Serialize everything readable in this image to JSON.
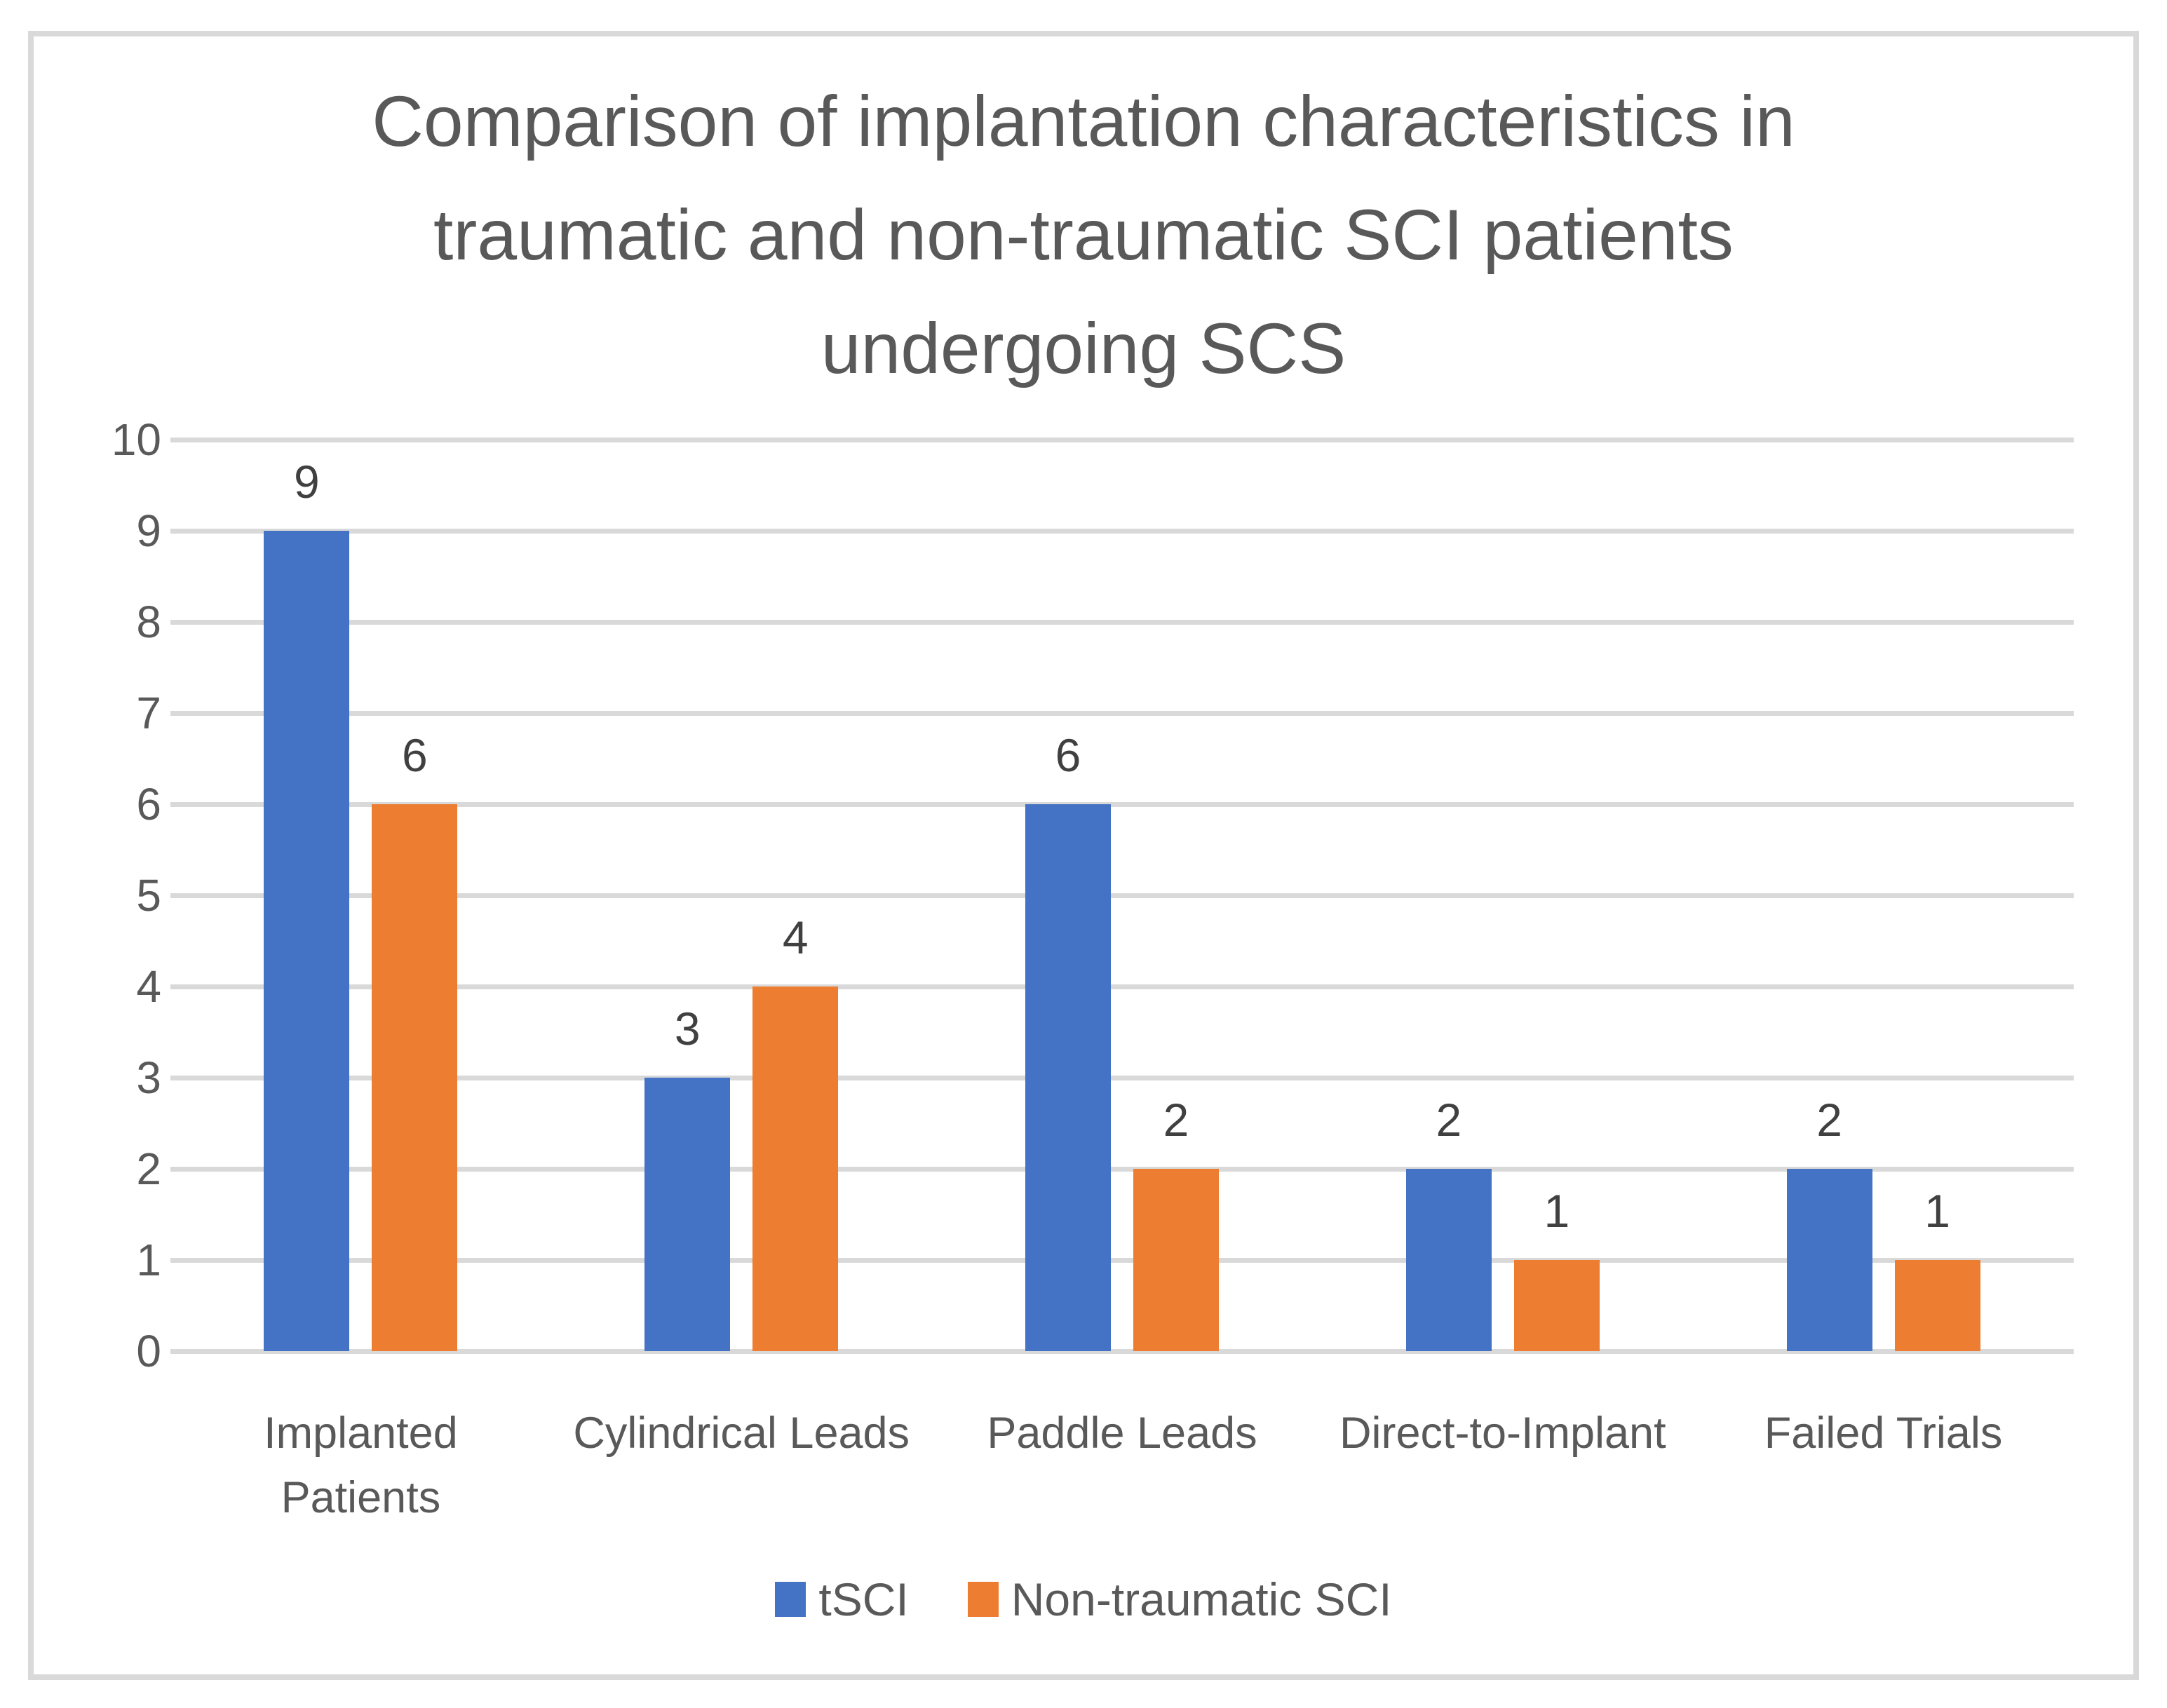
{
  "chart_data": {
    "type": "bar",
    "title": "Comparison of implantation characteristics in traumatic and non-traumatic SCI patients undergoing SCS",
    "title_lines": [
      "Comparison of implantation characteristics in",
      "traumatic and non-traumatic SCI patients",
      "undergoing SCS"
    ],
    "categories": [
      "Implanted\nPatients",
      "Cylindrical Leads",
      "Paddle Leads",
      "Direct-to-Implant",
      "Failed Trials"
    ],
    "series": [
      {
        "name": "tSCI",
        "color": "#4472C4",
        "values": [
          9,
          3,
          6,
          2,
          2
        ]
      },
      {
        "name": "Non-traumatic SCI",
        "color": "#ED7D31",
        "values": [
          6,
          4,
          2,
          1,
          1
        ]
      }
    ],
    "ylim": [
      0,
      10
    ],
    "ytick_step": 1,
    "ytick_labels": [
      "0",
      "1",
      "2",
      "3",
      "4",
      "5",
      "6",
      "7",
      "8",
      "9",
      "10"
    ],
    "grid": true,
    "data_labels": true,
    "legend_position": "bottom",
    "xlabel": "",
    "ylabel": ""
  },
  "colors": {
    "gridline": "#D9D9D9",
    "frame_border": "#D9D9D9",
    "title_text": "#595959",
    "axis_text": "#595959",
    "data_label_text": "#404040",
    "background": "#FFFFFF"
  }
}
